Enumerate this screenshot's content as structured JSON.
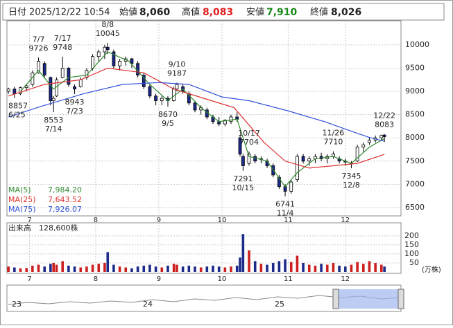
{
  "header": {
    "date_label": "日付",
    "date": "2025/12/22 10:54",
    "open_label": "始値",
    "open": "8,060",
    "high_label": "高値",
    "high": "8,083",
    "low_label": "安値",
    "low": "7,910",
    "close_label": "終値",
    "close": "8,026"
  },
  "chart_data": {
    "type": "candlestick",
    "xlim": [
      -0.5,
      130.5
    ],
    "xticks": [
      {
        "value": 7,
        "label": "7"
      },
      {
        "value": 29,
        "label": "8"
      },
      {
        "value": 50,
        "label": "9"
      },
      {
        "value": 71,
        "label": "10"
      },
      {
        "value": 93,
        "label": "11"
      },
      {
        "value": 112,
        "label": "12"
      }
    ],
    "ylim": [
      6320,
      10520
    ],
    "yticks": [
      6500,
      7000,
      7500,
      8000,
      8500,
      9000,
      9500,
      10000
    ],
    "grid": true,
    "up_color": "#ffffff",
    "down_color": "#1c2a8a",
    "wick_color": "#000000",
    "x": [
      0,
      2,
      4,
      6,
      8,
      10,
      12,
      14,
      15,
      16,
      18,
      20,
      22,
      24,
      26,
      28,
      30,
      32,
      33,
      35,
      37,
      39,
      41,
      43,
      45,
      47,
      49,
      51,
      53,
      55,
      56,
      58,
      60,
      62,
      64,
      66,
      68,
      70,
      72,
      74,
      76,
      77,
      78,
      80,
      82,
      84,
      86,
      88,
      90,
      92,
      94,
      96,
      98,
      100,
      102,
      104,
      106,
      108,
      110,
      112,
      114,
      116,
      118,
      120,
      122,
      124,
      125
    ],
    "open": [
      9000,
      9050,
      8950,
      9080,
      9150,
      9400,
      9600,
      9300,
      8800,
      8900,
      9300,
      9500,
      9100,
      9100,
      9300,
      9500,
      9750,
      9850,
      9950,
      9850,
      9550,
      9650,
      9700,
      9600,
      9350,
      9100,
      8900,
      8800,
      8850,
      8800,
      9050,
      9100,
      8950,
      8750,
      8600,
      8600,
      8450,
      8350,
      8300,
      8350,
      8450,
      8000,
      7600,
      7450,
      7600,
      7550,
      7500,
      7400,
      7150,
      6950,
      6850,
      7100,
      7600,
      7500,
      7550,
      7600,
      7550,
      7600,
      7550,
      7500,
      7450,
      7500,
      7800,
      7900,
      7950,
      8000,
      8060
    ],
    "high": [
      9080,
      9100,
      9100,
      9150,
      9450,
      9726,
      9650,
      9320,
      8900,
      9300,
      9748,
      9520,
      9150,
      9300,
      9500,
      9800,
      9900,
      10000,
      10045,
      9900,
      9700,
      9750,
      9720,
      9650,
      9400,
      9150,
      8950,
      8900,
      8900,
      9100,
      9187,
      9150,
      9000,
      8800,
      8700,
      8650,
      8500,
      8450,
      8400,
      8500,
      8550,
      8050,
      7650,
      7704,
      7650,
      7600,
      7550,
      7450,
      7200,
      7000,
      7100,
      7650,
      7650,
      7600,
      7650,
      7680,
      7650,
      7710,
      7600,
      7550,
      7500,
      7850,
      7900,
      8000,
      8050,
      8070,
      8083
    ],
    "low": [
      8950,
      8857,
      8920,
      9000,
      9100,
      9380,
      9300,
      8700,
      8553,
      8880,
      9280,
      9100,
      8943,
      9080,
      9250,
      9450,
      9650,
      9700,
      9800,
      9500,
      9450,
      9550,
      9500,
      9300,
      9050,
      8850,
      8700,
      8700,
      8670,
      8780,
      9000,
      8950,
      8700,
      8550,
      8500,
      8400,
      8300,
      8250,
      8250,
      8300,
      8350,
      7600,
      7291,
      7400,
      7450,
      7450,
      7350,
      7150,
      6900,
      6741,
      6800,
      7050,
      7450,
      7400,
      7450,
      7500,
      7450,
      7550,
      7450,
      7400,
      7345,
      7480,
      7700,
      7850,
      7900,
      7950,
      7910
    ],
    "close": [
      9050,
      8950,
      9080,
      9120,
      9400,
      9650,
      9350,
      8800,
      8850,
      9250,
      9500,
      9150,
      9050,
      9250,
      9450,
      9750,
      9850,
      9950,
      9900,
      9550,
      9650,
      9700,
      9600,
      9350,
      9100,
      8900,
      8800,
      8850,
      8800,
      9050,
      9150,
      9000,
      8750,
      8600,
      8650,
      8450,
      8350,
      8300,
      8380,
      8450,
      8400,
      7650,
      7400,
      7650,
      7500,
      7550,
      7400,
      7200,
      6950,
      6850,
      7050,
      7600,
      7500,
      7550,
      7600,
      7550,
      7600,
      7650,
      7500,
      7480,
      7450,
      7800,
      7850,
      7950,
      8000,
      8050,
      8026
    ],
    "moving_averages": [
      {
        "name": "MA(5)",
        "last_label": "7,984.20",
        "color": "#2e8b2e",
        "x": [
          4,
          10,
          15,
          20,
          26,
          33,
          40,
          47,
          53,
          58,
          64,
          70,
          76,
          80,
          86,
          92,
          96,
          102,
          108,
          114,
          120,
          125
        ],
        "values": [
          9000,
          9450,
          9050,
          9300,
          9350,
          9850,
          9650,
          9150,
          8800,
          9050,
          8650,
          8350,
          8400,
          7600,
          7500,
          6950,
          7250,
          7550,
          7600,
          7450,
          7800,
          7984
        ]
      },
      {
        "name": "MA(25)",
        "last_label": "7,643.52",
        "color": "#e03030",
        "x": [
          0,
          12,
          24,
          33,
          45,
          55,
          65,
          75,
          85,
          92,
          100,
          108,
          116,
          125
        ],
        "values": [
          8900,
          9150,
          9250,
          9500,
          9400,
          9050,
          8850,
          8650,
          7900,
          7500,
          7350,
          7400,
          7450,
          7644
        ]
      },
      {
        "name": "MA(75)",
        "last_label": "7,926.07",
        "color": "#3050d8",
        "x": [
          0,
          12,
          25,
          38,
          50,
          60,
          71,
          80,
          93,
          105,
          115,
          120,
          125
        ],
        "values": [
          8450,
          8700,
          8950,
          9150,
          9190,
          9150,
          8880,
          8800,
          8580,
          8350,
          8120,
          8010,
          7926
        ]
      }
    ],
    "annotations": [
      {
        "kind": "low",
        "date": "6/25",
        "price": 8857,
        "x": 2
      },
      {
        "kind": "high",
        "date": "7/7",
        "price": 9726,
        "x": 10
      },
      {
        "kind": "low",
        "date": "7/14",
        "price": 8553,
        "x": 15
      },
      {
        "kind": "high",
        "date": "7/17",
        "price": 9748,
        "x": 18
      },
      {
        "kind": "low",
        "date": "7/23",
        "price": 8943,
        "x": 22
      },
      {
        "kind": "high",
        "date": "8/8",
        "price": 10045,
        "x": 33
      },
      {
        "kind": "low",
        "date": "9/5",
        "price": 8670,
        "x": 53
      },
      {
        "kind": "high",
        "date": "9/10",
        "price": 9187,
        "x": 56
      },
      {
        "kind": "low",
        "date": "10/15",
        "price": 7291,
        "x": 78
      },
      {
        "kind": "high",
        "date": "10/17",
        "price": 7704,
        "x": 80
      },
      {
        "kind": "low",
        "date": "11/4",
        "price": 6741,
        "x": 92
      },
      {
        "kind": "high",
        "date": "11/26",
        "price": 7710,
        "x": 108
      },
      {
        "kind": "low",
        "date": "12/8",
        "price": 7345,
        "x": 114
      },
      {
        "kind": "high",
        "date": "12/22",
        "price": 8083,
        "x": 125
      }
    ],
    "volume": {
      "label": "出来高",
      "total": "128,600株",
      "unit": "(万株)",
      "ylim": [
        0,
        230
      ],
      "yticks": [
        50,
        100,
        150,
        200
      ],
      "up_color": "#cc2020",
      "down_color": "#1c2a8a",
      "values": [
        30,
        25,
        20,
        22,
        35,
        40,
        30,
        45,
        50,
        40,
        60,
        35,
        30,
        25,
        30,
        40,
        45,
        50,
        110,
        40,
        30,
        25,
        20,
        30,
        35,
        40,
        30,
        25,
        35,
        45,
        40,
        30,
        35,
        30,
        25,
        30,
        35,
        30,
        25,
        30,
        35,
        80,
        210,
        120,
        60,
        45,
        40,
        50,
        60,
        70,
        55,
        90,
        50,
        40,
        35,
        45,
        40,
        50,
        35,
        30,
        40,
        55,
        45,
        60,
        50,
        40,
        30
      ]
    }
  },
  "navigator": {
    "labels": [
      "23",
      "24",
      "25"
    ]
  }
}
